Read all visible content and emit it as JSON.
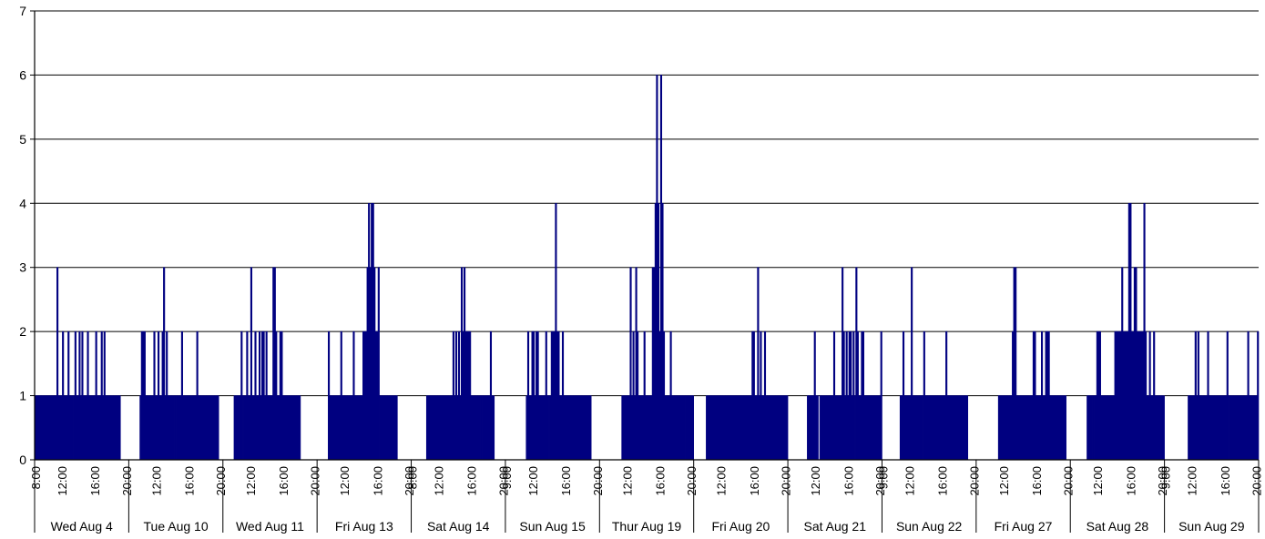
{
  "chart_data": {
    "type": "bar",
    "title": "",
    "xlabel": "",
    "ylabel": "",
    "ylim": [
      0,
      7
    ],
    "yticks": [
      "0",
      "1",
      "2",
      "3",
      "4",
      "5",
      "6",
      "7"
    ],
    "grid": true,
    "colors": {
      "bars": "#000080",
      "grid": "#000000",
      "background": "#ffffff"
    },
    "days": [
      {
        "label": "Wed Aug 4",
        "ticks": [
          "8:00",
          "12:00",
          "16:00",
          "20:00"
        ],
        "values": [
          1,
          1,
          1,
          1,
          1,
          1,
          1,
          1,
          1,
          1,
          1,
          1,
          1,
          1,
          1,
          1,
          3,
          1,
          1,
          1,
          2,
          1,
          1,
          1,
          2,
          1,
          1,
          1,
          1,
          2,
          1,
          1,
          2,
          1,
          2,
          1,
          1,
          1,
          2,
          1,
          1,
          1,
          1,
          1,
          2,
          1,
          1,
          1,
          2,
          1,
          2,
          1,
          1,
          1,
          1,
          1,
          1,
          1,
          1,
          1,
          1,
          1,
          0,
          0,
          0,
          0,
          0,
          0
        ]
      },
      {
        "label": "Tue Aug 10",
        "ticks": [
          "",
          "12:00",
          "16:00",
          "20:00"
        ],
        "values": [
          0,
          0,
          0,
          0,
          0,
          0,
          0,
          0,
          1,
          2,
          2,
          2,
          1,
          1,
          1,
          1,
          1,
          1,
          2,
          1,
          1,
          2,
          1,
          1,
          2,
          3,
          1,
          2,
          1,
          1,
          1,
          1,
          1,
          1,
          1,
          1,
          1,
          1,
          2,
          1,
          1,
          1,
          1,
          1,
          1,
          1,
          1,
          1,
          1,
          2,
          1,
          1,
          1,
          1,
          1,
          1,
          1,
          1,
          1,
          1,
          1,
          1,
          1,
          1,
          1,
          0,
          0,
          0
        ]
      },
      {
        "label": "Wed Aug 11",
        "ticks": [
          "",
          "12:00",
          "16:00",
          "20:00"
        ],
        "values": [
          0,
          0,
          0,
          0,
          0,
          0,
          0,
          0,
          1,
          1,
          1,
          1,
          1,
          2,
          1,
          1,
          1,
          2,
          1,
          1,
          3,
          1,
          1,
          2,
          1,
          1,
          2,
          1,
          2,
          2,
          1,
          2,
          1,
          1,
          1,
          1,
          3,
          3,
          2,
          1,
          1,
          2,
          2,
          1,
          1,
          1,
          1,
          1,
          1,
          1,
          1,
          1,
          1,
          1,
          1,
          1,
          0,
          0,
          0,
          0,
          0,
          0,
          0,
          0,
          0,
          0,
          0,
          0
        ]
      },
      {
        "label": "Fri Aug 13",
        "ticks": [
          "",
          "12:00",
          "16:00",
          "20:00"
        ],
        "values": [
          0,
          0,
          0,
          0,
          0,
          0,
          0,
          0,
          2,
          1,
          1,
          1,
          1,
          1,
          1,
          1,
          1,
          2,
          1,
          1,
          1,
          1,
          1,
          1,
          1,
          1,
          2,
          1,
          1,
          1,
          1,
          1,
          1,
          2,
          2,
          2,
          3,
          4,
          3,
          4,
          4,
          3,
          2,
          2,
          3,
          1,
          1,
          1,
          1,
          1,
          1,
          1,
          1,
          1,
          1,
          1,
          1,
          1,
          0,
          0,
          0,
          0,
          0,
          0,
          0,
          0,
          0,
          0
        ]
      },
      {
        "label": "Sat Aug 14",
        "ticks": [
          "8:00",
          "12:00",
          "16:00",
          "20:00"
        ],
        "values": [
          0,
          0,
          0,
          0,
          0,
          0,
          0,
          0,
          0,
          0,
          0,
          1,
          1,
          1,
          1,
          1,
          1,
          1,
          1,
          1,
          1,
          1,
          1,
          1,
          1,
          1,
          1,
          1,
          1,
          1,
          2,
          1,
          2,
          1,
          2,
          1,
          3,
          2,
          3,
          2,
          2,
          2,
          2,
          1,
          1,
          1,
          1,
          1,
          1,
          1,
          1,
          1,
          1,
          1,
          1,
          1,
          1,
          2,
          1,
          1,
          0,
          0,
          0,
          0,
          0,
          0,
          0,
          0
        ]
      },
      {
        "label": "Sun Aug 15",
        "ticks": [
          "9:00",
          "12:00",
          "16:00",
          "20:00"
        ],
        "values": [
          0,
          0,
          0,
          0,
          0,
          0,
          0,
          0,
          0,
          0,
          0,
          0,
          0,
          0,
          0,
          1,
          2,
          1,
          1,
          2,
          2,
          1,
          2,
          2,
          1,
          1,
          1,
          1,
          1,
          2,
          1,
          1,
          1,
          2,
          2,
          2,
          4,
          2,
          2,
          1,
          1,
          2,
          1,
          1,
          1,
          1,
          1,
          1,
          1,
          1,
          1,
          1,
          1,
          1,
          1,
          1,
          1,
          1,
          1,
          1,
          1,
          1,
          0,
          0,
          0,
          0,
          0,
          0
        ]
      },
      {
        "label": "Thur Aug 19",
        "ticks": [
          "",
          "12:00",
          "16:00",
          "20:00"
        ],
        "values": [
          0,
          0,
          0,
          0,
          0,
          0,
          0,
          0,
          0,
          0,
          0,
          0,
          0,
          0,
          0,
          0,
          1,
          1,
          1,
          1,
          1,
          1,
          3,
          1,
          2,
          1,
          3,
          2,
          1,
          1,
          1,
          1,
          2,
          1,
          1,
          1,
          1,
          1,
          3,
          3,
          4,
          6,
          4,
          2,
          6,
          4,
          2,
          1,
          1,
          1,
          1,
          2,
          1,
          1,
          1,
          1,
          1,
          1,
          1,
          1,
          1,
          1,
          1,
          1,
          1,
          1,
          1,
          1
        ]
      },
      {
        "label": "Fri Aug 20",
        "ticks": [
          "",
          "12:00",
          "16:00",
          "20:00"
        ],
        "values": [
          0,
          0,
          0,
          0,
          0,
          0,
          0,
          0,
          0,
          1,
          1,
          1,
          1,
          1,
          1,
          1,
          1,
          1,
          1,
          1,
          1,
          1,
          1,
          1,
          1,
          1,
          1,
          1,
          1,
          1,
          1,
          1,
          1,
          1,
          1,
          1,
          1,
          1,
          1,
          1,
          1,
          1,
          2,
          2,
          1,
          1,
          3,
          1,
          2,
          1,
          1,
          2,
          1,
          1,
          1,
          1,
          1,
          1,
          1,
          1,
          1,
          1,
          1,
          1,
          1,
          1,
          1,
          1
        ]
      },
      {
        "label": "Sat Aug 21",
        "ticks": [
          "",
          "12:00",
          "16:00",
          "20:00"
        ],
        "values": [
          0,
          0,
          0,
          0,
          0,
          0,
          0,
          0,
          0,
          0,
          0,
          0,
          0,
          0,
          1,
          1,
          1,
          1,
          1,
          2,
          1,
          1,
          0,
          1,
          1,
          1,
          1,
          1,
          1,
          1,
          1,
          1,
          1,
          2,
          1,
          1,
          1,
          1,
          1,
          3,
          2,
          1,
          2,
          1,
          2,
          2,
          1,
          2,
          1,
          3,
          2,
          1,
          1,
          2,
          2,
          1,
          1,
          1,
          1,
          1,
          1,
          1,
          1,
          1,
          1,
          1,
          1,
          2
        ]
      },
      {
        "label": "Sun Aug 22",
        "ticks": [
          "9:00",
          "12:00",
          "16:00",
          "20:00"
        ],
        "values": [
          0,
          0,
          0,
          0,
          0,
          0,
          0,
          0,
          0,
          0,
          0,
          0,
          0,
          1,
          1,
          2,
          1,
          1,
          1,
          1,
          1,
          3,
          1,
          1,
          1,
          1,
          1,
          1,
          1,
          1,
          2,
          1,
          1,
          1,
          1,
          1,
          1,
          1,
          1,
          1,
          1,
          1,
          1,
          1,
          1,
          1,
          2,
          1,
          1,
          1,
          1,
          1,
          1,
          1,
          1,
          1,
          1,
          1,
          1,
          1,
          1,
          1,
          0,
          0,
          0,
          0,
          0,
          0
        ]
      },
      {
        "label": "Fri Aug 27",
        "ticks": [
          "",
          "12:00",
          "16:00",
          "20:00"
        ],
        "values": [
          0,
          0,
          0,
          0,
          0,
          0,
          0,
          0,
          0,
          0,
          0,
          0,
          0,
          0,
          0,
          0,
          1,
          1,
          1,
          1,
          1,
          1,
          1,
          1,
          1,
          1,
          2,
          3,
          3,
          1,
          1,
          1,
          1,
          1,
          1,
          1,
          1,
          1,
          1,
          1,
          1,
          2,
          2,
          1,
          1,
          1,
          1,
          2,
          1,
          1,
          2,
          2,
          2,
          1,
          1,
          1,
          1,
          1,
          1,
          1,
          1,
          1,
          1,
          1,
          1,
          0,
          0,
          0
        ]
      },
      {
        "label": "Sat Aug 28",
        "ticks": [
          "",
          "12:00",
          "16:00",
          "20:00"
        ],
        "values": [
          0,
          0,
          0,
          0,
          0,
          0,
          0,
          0,
          0,
          0,
          0,
          0,
          1,
          1,
          1,
          1,
          1,
          1,
          1,
          2,
          2,
          2,
          1,
          1,
          1,
          1,
          1,
          1,
          1,
          1,
          1,
          1,
          2,
          2,
          2,
          2,
          2,
          3,
          2,
          2,
          2,
          2,
          4,
          4,
          2,
          2,
          3,
          3,
          2,
          2,
          2,
          2,
          2,
          4,
          2,
          1,
          1,
          2,
          1,
          1,
          2,
          1,
          1,
          1,
          1,
          1,
          1,
          1
        ]
      },
      {
        "label": "Sun Aug 29",
        "ticks": [
          "9:00",
          "12:00",
          "16:00",
          "20:00"
        ],
        "values": [
          0,
          0,
          0,
          0,
          0,
          0,
          0,
          0,
          0,
          0,
          0,
          0,
          0,
          0,
          0,
          0,
          0,
          1,
          1,
          1,
          1,
          1,
          2,
          1,
          2,
          1,
          1,
          1,
          1,
          1,
          1,
          2,
          1,
          1,
          1,
          1,
          1,
          1,
          1,
          1,
          1,
          1,
          1,
          1,
          1,
          2,
          1,
          1,
          1,
          1,
          1,
          1,
          1,
          1,
          1,
          1,
          1,
          1,
          1,
          1,
          2,
          1,
          1,
          1,
          1,
          1,
          1,
          2
        ]
      }
    ]
  }
}
